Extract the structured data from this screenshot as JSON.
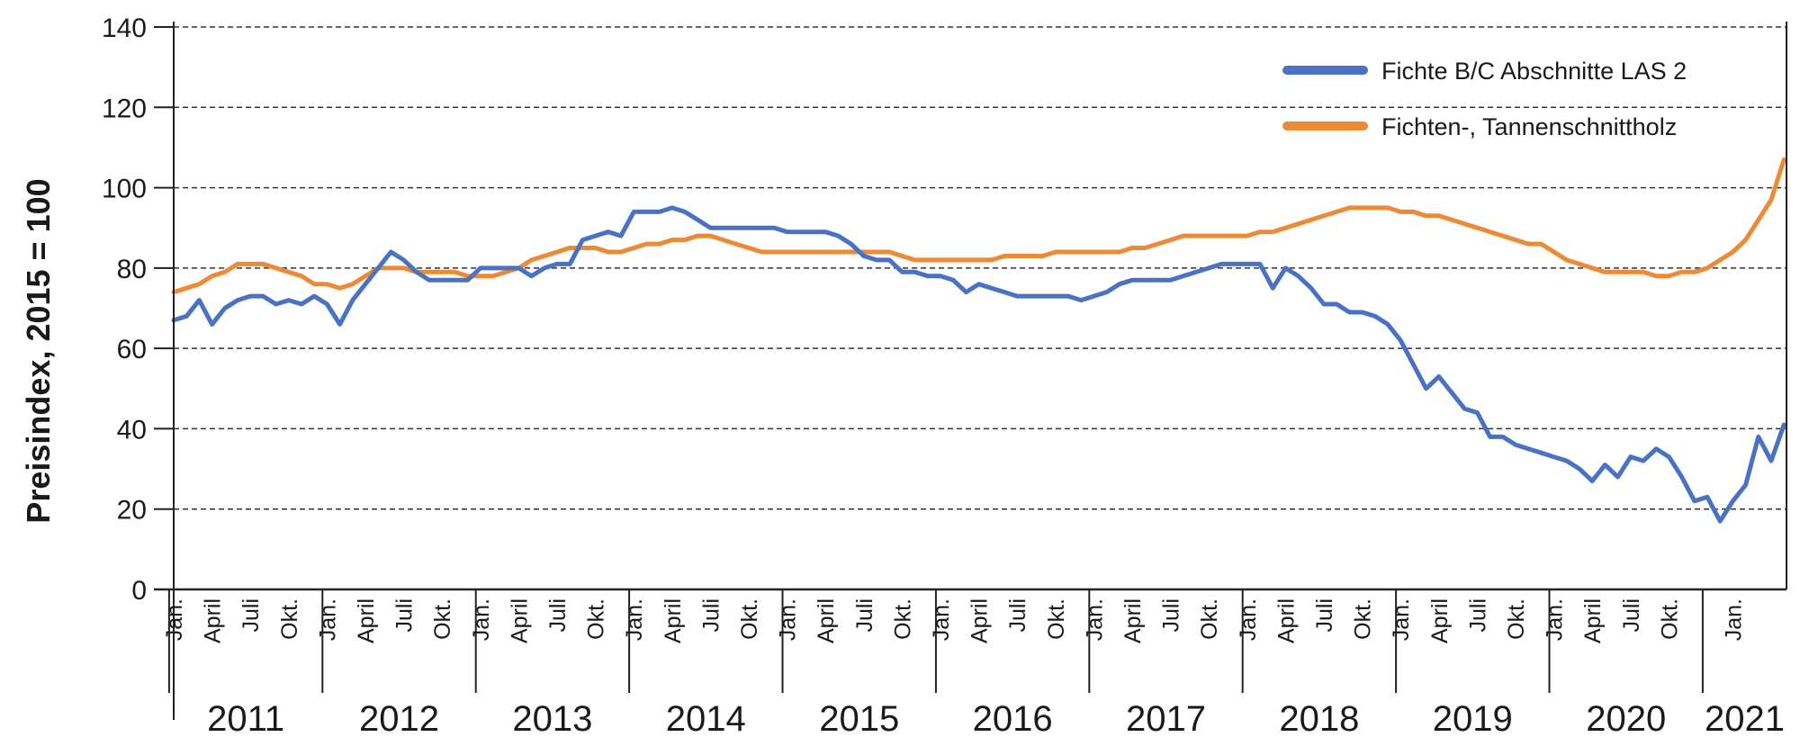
{
  "chart_data": {
    "type": "line",
    "title": "",
    "xlabel": "",
    "ylabel": "Preisindex, 2015 = 100",
    "ylim": [
      0,
      140
    ],
    "y_ticks": [
      0,
      20,
      40,
      60,
      80,
      100,
      120,
      140
    ],
    "grid": "horizontal dashed",
    "legend_position": "top-right",
    "x_start": "2011-01",
    "years": [
      "2011",
      "2012",
      "2013",
      "2014",
      "2015",
      "2016",
      "2017",
      "2018",
      "2019",
      "2020",
      "2021"
    ],
    "month_labels": [
      "Jan.",
      "April",
      "Juli",
      "Okt."
    ],
    "last_year_month_labels": [
      "Jan."
    ],
    "series": [
      {
        "name": "Fichte B/C Abschnitte LAS 2",
        "color": "#4a72c4",
        "values": [
          67,
          68,
          72,
          66,
          70,
          72,
          73,
          73,
          71,
          72,
          71,
          73,
          71,
          66,
          72,
          76,
          80,
          84,
          82,
          79,
          77,
          77,
          77,
          77,
          80,
          80,
          80,
          80,
          78,
          80,
          81,
          81,
          87,
          88,
          89,
          88,
          94,
          94,
          94,
          95,
          94,
          92,
          90,
          90,
          90,
          90,
          90,
          90,
          89,
          89,
          89,
          89,
          88,
          86,
          83,
          82,
          82,
          79,
          79,
          78,
          78,
          77,
          74,
          76,
          75,
          74,
          73,
          73,
          73,
          73,
          73,
          72,
          73,
          74,
          76,
          77,
          77,
          77,
          77,
          78,
          79,
          80,
          81,
          81,
          81,
          81,
          75,
          80,
          78,
          75,
          71,
          71,
          69,
          69,
          68,
          66,
          62,
          56,
          50,
          53,
          49,
          45,
          44,
          38,
          38,
          36,
          35,
          34,
          33,
          32,
          30,
          27,
          31,
          28,
          33,
          32,
          35,
          33,
          28,
          22,
          23,
          17,
          22,
          26,
          38,
          32,
          41
        ]
      },
      {
        "name": "Fichten-, Tannenschnittholz",
        "color": "#ee8a36",
        "values": [
          74,
          75,
          76,
          78,
          79,
          81,
          81,
          81,
          80,
          79,
          78,
          76,
          76,
          75,
          76,
          78,
          80,
          80,
          80,
          79,
          79,
          79,
          79,
          78,
          78,
          78,
          79,
          80,
          82,
          83,
          84,
          85,
          85,
          85,
          84,
          84,
          85,
          86,
          86,
          87,
          87,
          88,
          88,
          87,
          86,
          85,
          84,
          84,
          84,
          84,
          84,
          84,
          84,
          84,
          84,
          84,
          84,
          83,
          82,
          82,
          82,
          82,
          82,
          82,
          82,
          83,
          83,
          83,
          83,
          84,
          84,
          84,
          84,
          84,
          84,
          85,
          85,
          86,
          87,
          88,
          88,
          88,
          88,
          88,
          88,
          89,
          89,
          90,
          91,
          92,
          93,
          94,
          95,
          95,
          95,
          95,
          94,
          94,
          93,
          93,
          92,
          91,
          90,
          89,
          88,
          87,
          86,
          86,
          84,
          82,
          81,
          80,
          79,
          79,
          79,
          79,
          78,
          78,
          79,
          79,
          80,
          82,
          84,
          87,
          92,
          97,
          107
        ]
      }
    ]
  }
}
